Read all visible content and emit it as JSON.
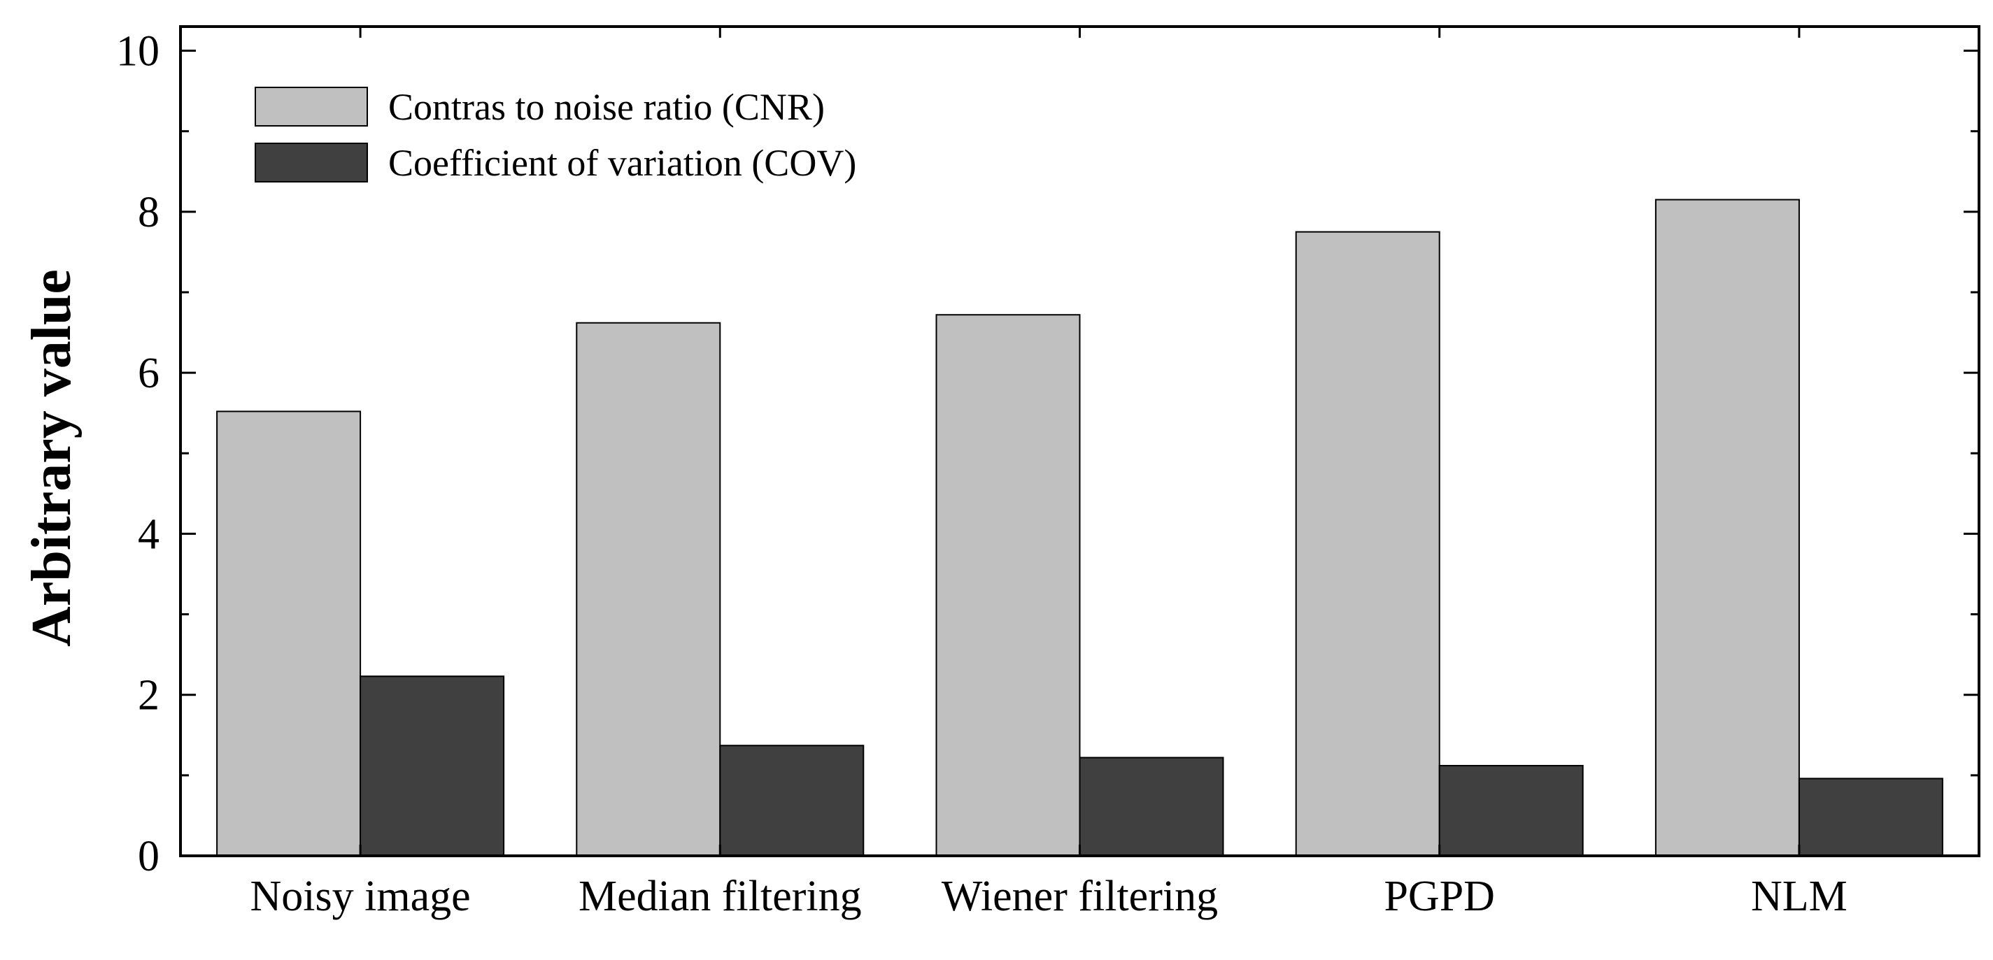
{
  "chart_data": {
    "type": "bar",
    "title": "",
    "xlabel": "",
    "ylabel": "Arbitrary value",
    "ylim": [
      0,
      10.3
    ],
    "yticks": [
      0,
      2,
      4,
      6,
      8,
      10
    ],
    "categories": [
      "Noisy image",
      "Median filtering",
      "Wiener filtering",
      "PGPD",
      "NLM"
    ],
    "series": [
      {
        "name": "Contras to noise ratio (CNR)",
        "color": "#c0c0c0",
        "values": [
          5.52,
          6.62,
          6.72,
          7.75,
          8.15
        ]
      },
      {
        "name": "Coefficient of variation (COV)",
        "color": "#404040",
        "values": [
          2.23,
          1.37,
          1.22,
          1.12,
          0.96
        ]
      }
    ],
    "legend_position": "top-left",
    "grid": false
  }
}
